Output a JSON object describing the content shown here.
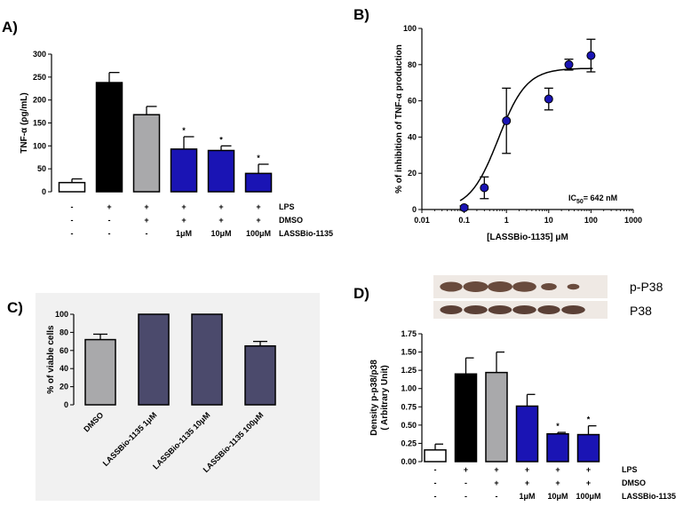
{
  "panels": {
    "A": "A)",
    "B": "B)",
    "C": "C)",
    "D": "D)"
  },
  "chart_data": [
    {
      "id": "A",
      "type": "bar",
      "ylabel": "TNF-α (ρg/mL)",
      "ylim": [
        0,
        300
      ],
      "yticks": [
        0,
        50,
        100,
        150,
        200,
        250,
        300
      ],
      "values": [
        20,
        238,
        168,
        93,
        90,
        40
      ],
      "errors": [
        8,
        22,
        18,
        27,
        10,
        20
      ],
      "colors": [
        "#ffffff",
        "#000000",
        "#a9a9ab",
        "#1a14b4",
        "#1a14b4",
        "#1a14b4"
      ],
      "significance": [
        "",
        "",
        "",
        "*",
        "*",
        "*"
      ],
      "conditions": [
        {
          "label": "LPS",
          "marks": [
            "-",
            "+",
            "+",
            "+",
            "+",
            "+"
          ]
        },
        {
          "label": "DMSO",
          "marks": [
            "-",
            "-",
            "+",
            "+",
            "+",
            "+"
          ]
        },
        {
          "label": "LASSBio-1135",
          "marks": [
            "-",
            "-",
            "-",
            "1μM",
            "10μM",
            "100μM"
          ]
        }
      ]
    },
    {
      "id": "B",
      "type": "scatter",
      "xscale": "log",
      "xlabel": "[LASSBio-1135] μM",
      "ylabel": "% of inhibition of TNF-α  production",
      "xlim": [
        0.01,
        1000
      ],
      "ylim": [
        0,
        100
      ],
      "xticks": [
        0.01,
        0.1,
        1,
        10,
        100,
        1000
      ],
      "xtick_labels": [
        "0.01",
        "0.1",
        "1",
        "10",
        "100",
        "1000"
      ],
      "yticks": [
        0,
        20,
        40,
        60,
        80,
        100
      ],
      "points": [
        {
          "x": 0.1,
          "y": 1,
          "err": 1
        },
        {
          "x": 0.3,
          "y": 12,
          "err": 6
        },
        {
          "x": 1,
          "y": 49,
          "err": 18
        },
        {
          "x": 10,
          "y": 61,
          "err": 6
        },
        {
          "x": 30,
          "y": 80,
          "err": 3
        },
        {
          "x": 100,
          "y": 85,
          "err": 9
        }
      ],
      "fit": {
        "bottom": 0,
        "top": 78,
        "ic50": 0.642,
        "hill": 1.3
      },
      "annotation_main": "IC",
      "annotation_sub": "50",
      "annotation_rest": "= 642 nM",
      "marker_color": "#1a14b4"
    },
    {
      "id": "C",
      "type": "bar",
      "ylabel": "% of viable cells",
      "ylim": [
        0,
        100
      ],
      "yticks": [
        0,
        20,
        40,
        60,
        80,
        100
      ],
      "categories": [
        "DMSO",
        "LASSBio-1135 1μM",
        "LASSBio-1135 10μM",
        "LASSBio-1135 100μM"
      ],
      "values": [
        72,
        100,
        100,
        65
      ],
      "errors": [
        6,
        0,
        0,
        5
      ],
      "colors": [
        "#a9a9ab",
        "#4b4a6c",
        "#4b4a6c",
        "#4b4a6c"
      ],
      "background": "#f1f1f1"
    },
    {
      "id": "D",
      "type": "bar",
      "ylabel": "Density p-p38/p38\n( Arbitrary Unit)",
      "ylim": [
        0,
        1.75
      ],
      "yticks": [
        0,
        0.25,
        0.5,
        0.75,
        1.0,
        1.25,
        1.5,
        1.75
      ],
      "ytick_labels": [
        "0.00",
        "0.25",
        "0.50",
        "0.75",
        "1.00",
        "1.25",
        "1.50",
        "1.75"
      ],
      "values": [
        0.16,
        1.2,
        1.22,
        0.76,
        0.38,
        0.37
      ],
      "errors": [
        0.08,
        0.22,
        0.28,
        0.16,
        0.02,
        0.12
      ],
      "colors": [
        "#ffffff",
        "#000000",
        "#a9a9ab",
        "#1a14b4",
        "#1a14b4",
        "#1a14b4"
      ],
      "significance": [
        "",
        "",
        "",
        "",
        "*",
        "*"
      ],
      "conditions": [
        {
          "label": "LPS",
          "marks": [
            "-",
            "+",
            "+",
            "+",
            "+",
            "+"
          ]
        },
        {
          "label": "DMSO",
          "marks": [
            "-",
            "-",
            "+",
            "+",
            "+",
            "+"
          ]
        },
        {
          "label": "LASSBio-1135",
          "marks": [
            "-",
            "-",
            "-",
            "1μM",
            "10μM",
            "100μM"
          ]
        }
      ],
      "blot_labels": [
        "p-P38",
        "P38"
      ]
    }
  ]
}
